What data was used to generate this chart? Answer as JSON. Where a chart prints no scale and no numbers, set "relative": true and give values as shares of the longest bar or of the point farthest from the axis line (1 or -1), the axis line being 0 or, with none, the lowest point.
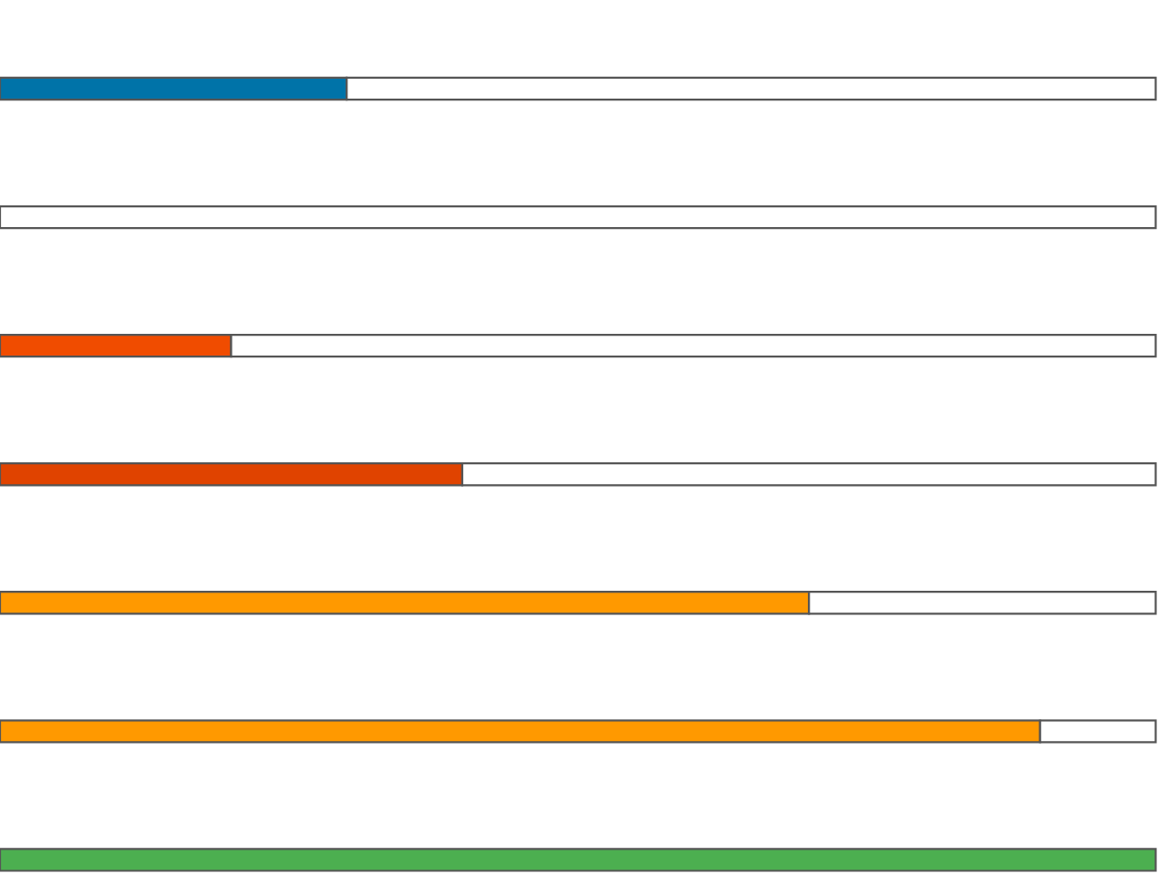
{
  "chart_data": {
    "type": "bar",
    "orientation": "horizontal",
    "stacked": true,
    "relative": true,
    "categories": [
      null,
      null,
      null,
      null,
      null,
      null,
      null
    ],
    "series": [
      {
        "colors": [
          "#0073a8",
          "#f04c00",
          "#f04c00",
          "#e04300",
          "#ff9900",
          "#ff9900",
          "#4caf50"
        ],
        "values": [
          0.3,
          0,
          0.2,
          0.4,
          0.7,
          0.9,
          1
        ]
      },
      {
        "color": "#ffffff",
        "values": [
          0.7,
          1,
          0.8,
          0.6,
          0.3,
          0.1,
          0
        ]
      }
    ]
  }
}
